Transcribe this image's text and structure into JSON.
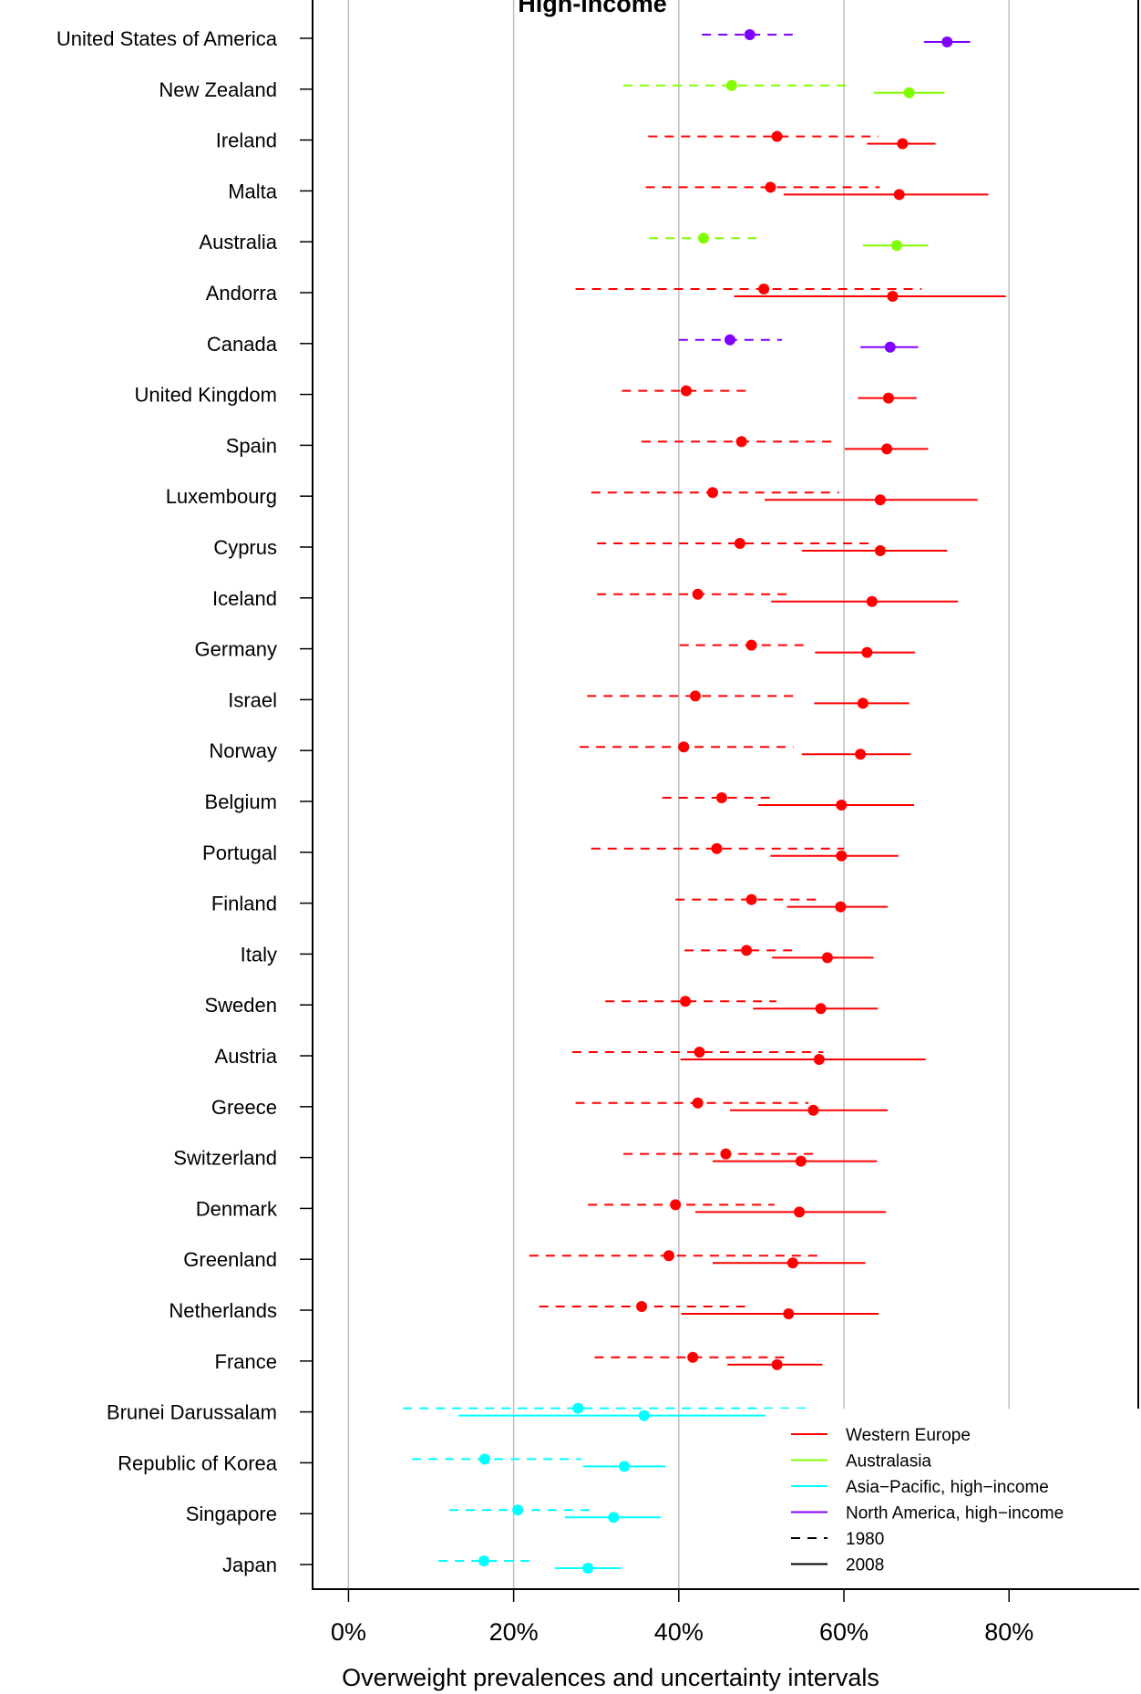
{
  "chart_data": {
    "type": "dot-interval",
    "title": "High-income",
    "xlabel": "Overweight prevalences and uncertainty intervals",
    "xlim": [
      -0.0435,
      0.9565
    ],
    "x_ticks": [
      0,
      0.2,
      0.4,
      0.6,
      0.8
    ],
    "x_tick_labels": [
      "0%",
      "20%",
      "40%",
      "60%",
      "80%"
    ],
    "grid": "vertical",
    "legend_position": "bottom-right",
    "colors": {
      "Western Europe": "#ff0000",
      "Australasia": "#80ff00",
      "Asia-Pacific, high-income": "#00ffff",
      "North America, high-income": "#8000ff",
      "grid": "#bebebe"
    },
    "legend": {
      "regions": [
        "Western Europe",
        "Australasia",
        "Asia−Pacific, high−income",
        "North America, high−income"
      ],
      "years": [
        "1980",
        "2008"
      ]
    },
    "countries": [
      {
        "name": "United States of America",
        "region": "North America, high-income",
        "y1980": [
          0.486,
          0.428,
          0.538
        ],
        "y2008": [
          0.725,
          0.697,
          0.753
        ]
      },
      {
        "name": "New Zealand",
        "region": "Australasia",
        "y1980": [
          0.464,
          0.333,
          0.604
        ],
        "y2008": [
          0.679,
          0.636,
          0.722
        ]
      },
      {
        "name": "Ireland",
        "region": "Western Europe",
        "y1980": [
          0.519,
          0.363,
          0.642
        ],
        "y2008": [
          0.671,
          0.628,
          0.711
        ]
      },
      {
        "name": "Malta",
        "region": "Western Europe",
        "y1980": [
          0.511,
          0.36,
          0.643
        ],
        "y2008": [
          0.667,
          0.527,
          0.775
        ]
      },
      {
        "name": "Australia",
        "region": "Australasia",
        "y1980": [
          0.43,
          0.364,
          0.497
        ],
        "y2008": [
          0.664,
          0.623,
          0.702
        ]
      },
      {
        "name": "Andorra",
        "region": "Western Europe",
        "y1980": [
          0.503,
          0.275,
          0.694
        ],
        "y2008": [
          0.659,
          0.467,
          0.796
        ]
      },
      {
        "name": "Canada",
        "region": "North America, high-income",
        "y1980": [
          0.462,
          0.4,
          0.525
        ],
        "y2008": [
          0.656,
          0.62,
          0.69
        ]
      },
      {
        "name": "United Kingdom",
        "region": "Western Europe",
        "y1980": [
          0.409,
          0.331,
          0.489
        ],
        "y2008": [
          0.654,
          0.617,
          0.688
        ]
      },
      {
        "name": "Spain",
        "region": "Western Europe",
        "y1980": [
          0.476,
          0.355,
          0.591
        ],
        "y2008": [
          0.652,
          0.601,
          0.702
        ]
      },
      {
        "name": "Luxembourg",
        "region": "Western Europe",
        "y1980": [
          0.441,
          0.294,
          0.594
        ],
        "y2008": [
          0.644,
          0.504,
          0.762
        ]
      },
      {
        "name": "Cyprus",
        "region": "Western Europe",
        "y1980": [
          0.474,
          0.301,
          0.633
        ],
        "y2008": [
          0.644,
          0.549,
          0.725
        ]
      },
      {
        "name": "Iceland",
        "region": "Western Europe",
        "y1980": [
          0.423,
          0.301,
          0.536
        ],
        "y2008": [
          0.634,
          0.512,
          0.738
        ]
      },
      {
        "name": "Germany",
        "region": "Western Europe",
        "y1980": [
          0.488,
          0.401,
          0.56
        ],
        "y2008": [
          0.628,
          0.565,
          0.686
        ]
      },
      {
        "name": "Israel",
        "region": "Western Europe",
        "y1980": [
          0.42,
          0.289,
          0.546
        ],
        "y2008": [
          0.623,
          0.564,
          0.679
        ]
      },
      {
        "name": "Norway",
        "region": "Western Europe",
        "y1980": [
          0.406,
          0.28,
          0.539
        ],
        "y2008": [
          0.62,
          0.549,
          0.681
        ]
      },
      {
        "name": "Belgium",
        "region": "Western Europe",
        "y1980": [
          0.452,
          0.38,
          0.514
        ],
        "y2008": [
          0.597,
          0.496,
          0.685
        ]
      },
      {
        "name": "Portugal",
        "region": "Western Europe",
        "y1980": [
          0.446,
          0.294,
          0.6
        ],
        "y2008": [
          0.597,
          0.511,
          0.666
        ]
      },
      {
        "name": "Finland",
        "region": "Western Europe",
        "y1980": [
          0.488,
          0.396,
          0.575
        ],
        "y2008": [
          0.596,
          0.531,
          0.653
        ]
      },
      {
        "name": "Italy",
        "region": "Western Europe",
        "y1980": [
          0.482,
          0.407,
          0.54
        ],
        "y2008": [
          0.58,
          0.513,
          0.636
        ]
      },
      {
        "name": "Sweden",
        "region": "Western Europe",
        "y1980": [
          0.408,
          0.311,
          0.518
        ],
        "y2008": [
          0.572,
          0.49,
          0.641
        ]
      },
      {
        "name": "Austria",
        "region": "Western Europe",
        "y1980": [
          0.425,
          0.271,
          0.575
        ],
        "y2008": [
          0.57,
          0.402,
          0.699
        ]
      },
      {
        "name": "Greece",
        "region": "Western Europe",
        "y1980": [
          0.423,
          0.275,
          0.557
        ],
        "y2008": [
          0.563,
          0.462,
          0.653
        ]
      },
      {
        "name": "Switzerland",
        "region": "Western Europe",
        "y1980": [
          0.457,
          0.333,
          0.564
        ],
        "y2008": [
          0.548,
          0.441,
          0.64
        ]
      },
      {
        "name": "Denmark",
        "region": "Western Europe",
        "y1980": [
          0.396,
          0.29,
          0.516
        ],
        "y2008": [
          0.546,
          0.42,
          0.651
        ]
      },
      {
        "name": "Greenland",
        "region": "Western Europe",
        "y1980": [
          0.388,
          0.219,
          0.573
        ],
        "y2008": [
          0.538,
          0.441,
          0.626
        ]
      },
      {
        "name": "Netherlands",
        "region": "Western Europe",
        "y1980": [
          0.355,
          0.231,
          0.487
        ],
        "y2008": [
          0.533,
          0.403,
          0.642
        ]
      },
      {
        "name": "France",
        "region": "Western Europe",
        "y1980": [
          0.417,
          0.298,
          0.53
        ],
        "y2008": [
          0.519,
          0.459,
          0.574
        ]
      },
      {
        "name": "Brunei Darussalam",
        "region": "Asia-Pacific, high-income",
        "y1980": [
          0.278,
          0.066,
          0.561
        ],
        "y2008": [
          0.358,
          0.133,
          0.531
        ]
      },
      {
        "name": "Republic of Korea",
        "region": "Asia-Pacific, high-income",
        "y1980": [
          0.165,
          0.077,
          0.282
        ],
        "y2008": [
          0.334,
          0.284,
          0.384
        ]
      },
      {
        "name": "Singapore",
        "region": "Asia-Pacific, high-income",
        "y1980": [
          0.205,
          0.122,
          0.297
        ],
        "y2008": [
          0.321,
          0.262,
          0.378
        ]
      },
      {
        "name": "Japan",
        "region": "Asia-Pacific, high-income",
        "y1980": [
          0.164,
          0.109,
          0.219
        ],
        "y2008": [
          0.29,
          0.25,
          0.33
        ]
      }
    ]
  }
}
